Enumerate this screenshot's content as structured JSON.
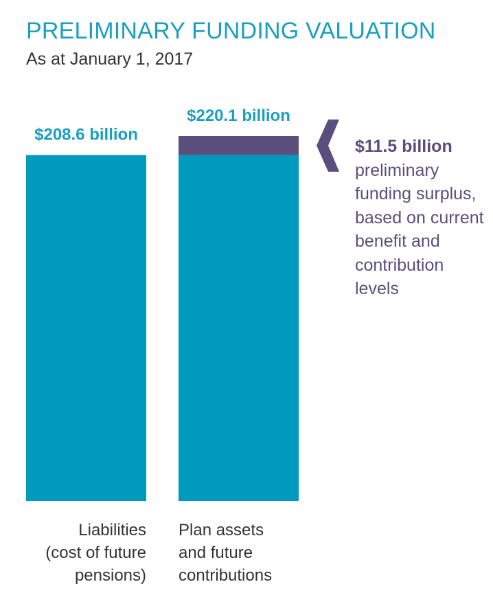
{
  "chart_data": {
    "type": "bar",
    "title": "PRELIMINARY FUNDING VALUATION",
    "subtitle": "As at January 1, 2017",
    "unit": "billion",
    "categories": [
      "Liabilities (cost of future pensions)",
      "Plan assets and future contributions"
    ],
    "category_lines": [
      [
        "Liabilities",
        "(cost of future",
        "pensions)"
      ],
      [
        "Plan assets",
        "and future",
        "contributions"
      ]
    ],
    "series": [
      {
        "values": [
          208.6,
          208.6
        ]
      },
      {
        "values": [
          0,
          11.5
        ]
      }
    ],
    "totals": [
      208.6,
      220.1
    ],
    "data_labels": [
      "$208.6 billion",
      "$220.1 billion"
    ],
    "annotation": {
      "amount": "$11.5 billion",
      "text": "preliminary funding surplus, based on current benefit and contribution levels",
      "value": 11.5
    },
    "colors": {
      "base": "#019abf",
      "surplus": "#5a4f7c",
      "label": "#1a9fc0",
      "text": "#333333"
    },
    "ylim": [
      0,
      220.1
    ],
    "grid": false,
    "legend": "none"
  }
}
